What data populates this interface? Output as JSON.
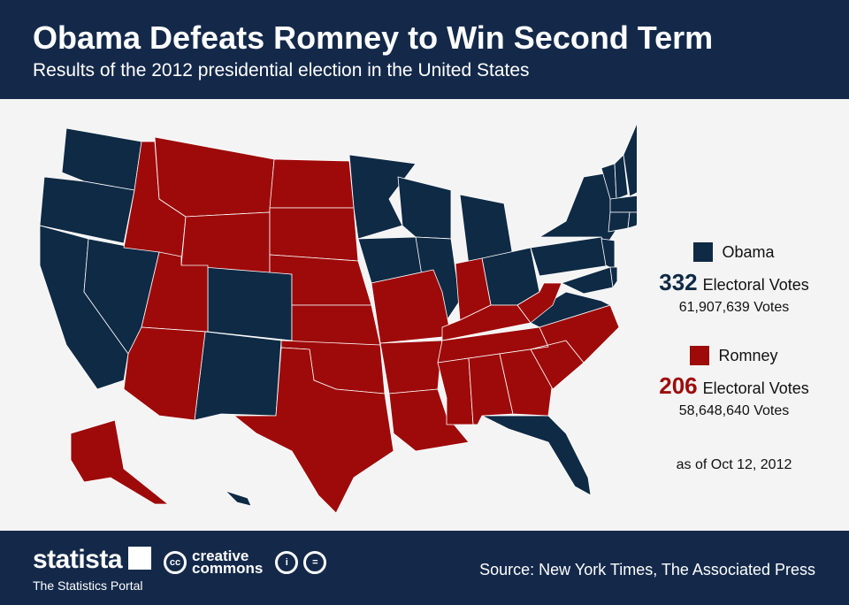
{
  "header": {
    "title": "Obama Defeats Romney to Win Second Term",
    "subtitle": "Results of the 2012 presidential election in the United States"
  },
  "colors": {
    "obama": "#0f2a45",
    "romney": "#9e0a0a",
    "header_bg": "#14294a"
  },
  "legend": {
    "obama": {
      "name": "Obama",
      "electoral": "332",
      "electoral_label": "Electoral Votes",
      "popular": "61,907,639 Votes"
    },
    "romney": {
      "name": "Romney",
      "electoral": "206",
      "electoral_label": "Electoral Votes",
      "popular": "58,648,640 Votes"
    },
    "as_of": "as of Oct 12, 2012"
  },
  "states": {
    "obama": [
      "WA",
      "OR",
      "CA",
      "NV",
      "CO",
      "NM",
      "MN",
      "IA",
      "WI",
      "IL",
      "MI",
      "OH",
      "PA",
      "NY",
      "NJ",
      "VA",
      "MD",
      "DE",
      "FL",
      "VT",
      "NH",
      "ME",
      "MA",
      "CT",
      "RI",
      "HI"
    ],
    "romney": [
      "ID",
      "MT",
      "WY",
      "UT",
      "AZ",
      "ND",
      "SD",
      "NE",
      "KS",
      "OK",
      "TX",
      "MO",
      "AR",
      "LA",
      "IN",
      "KY",
      "TN",
      "MS",
      "AL",
      "GA",
      "SC",
      "NC",
      "WV",
      "AK"
    ]
  },
  "footer": {
    "brand": "statista",
    "brand_sub": "The Statistics Portal",
    "cc_line1": "creative",
    "cc_line2": "commons",
    "cc_badge": "cc",
    "source": "Source: New York Times, The Associated Press"
  }
}
